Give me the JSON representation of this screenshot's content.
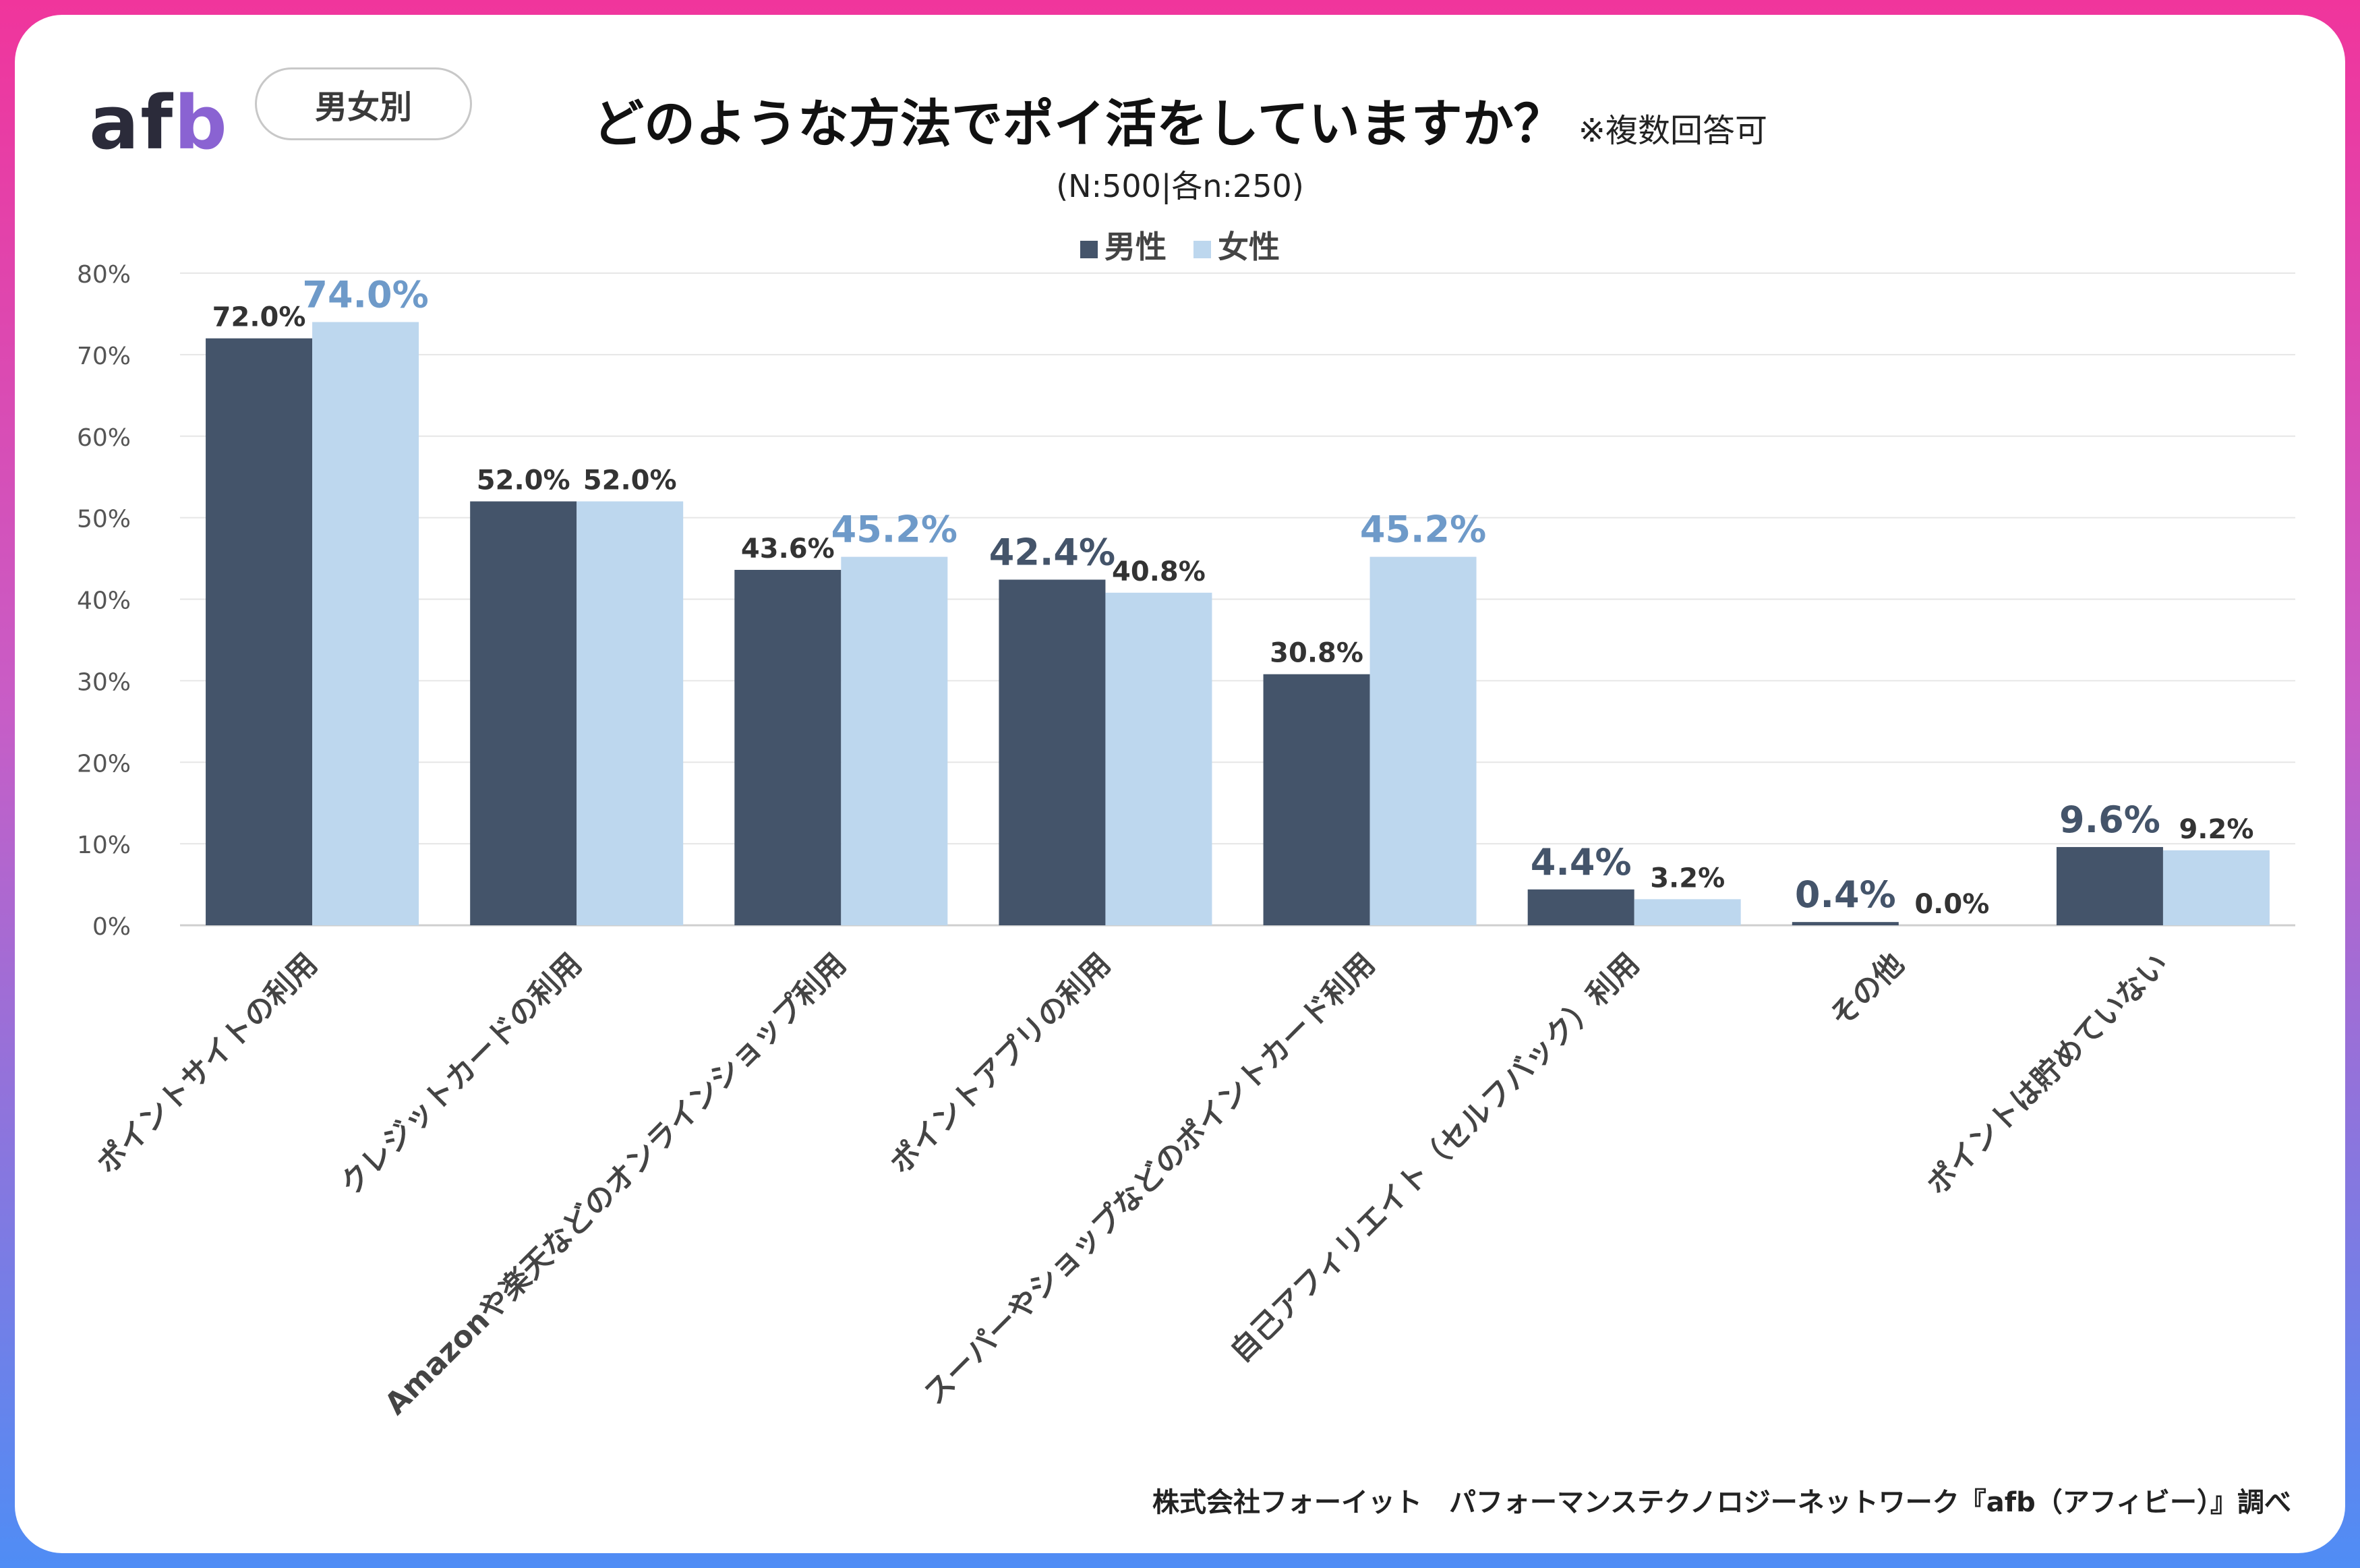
{
  "header": {
    "logo_text_a": "af",
    "logo_text_b": "b",
    "group_pill": "男女別",
    "title": "どのような方法でポイ活をしていますか？",
    "title_note": "※複数回答可",
    "subtitle": "(N:500|各n:250)"
  },
  "footer": {
    "source": "株式会社フォーイット　パフォーマンステクノロジーネットワーク『afb（アフィビー）』調べ"
  },
  "colors": {
    "male": "#44546a",
    "female": "#bdd7ee",
    "highlight": "#6e9ac9",
    "grid": "#e6e6e6"
  },
  "chart_data": {
    "type": "bar",
    "title": "どのような方法でポイ活をしていますか？",
    "categories": [
      "ポイントサイトの利用",
      "クレジットカードの利用",
      "Amazonや楽天などのオンラインショップ利用",
      "ポイントアプリの利用",
      "スーパーやショップなどのポイントカード利用",
      "自己アフィリエイト（セルフバック）利用",
      "その他",
      "ポイントは貯めていない"
    ],
    "series": [
      {
        "name": "男性",
        "values": [
          72.0,
          52.0,
          43.6,
          42.4,
          30.8,
          4.4,
          0.4,
          9.6
        ]
      },
      {
        "name": "女性",
        "values": [
          74.0,
          52.0,
          45.2,
          40.8,
          45.2,
          3.2,
          0.0,
          9.2
        ]
      }
    ],
    "data_labels": [
      [
        "72.0%",
        "52.0%",
        "43.6%",
        "42.4%",
        "30.8%",
        "4.4%",
        "0.4%",
        "9.6%"
      ],
      [
        "74.0%",
        "52.0%",
        "45.2%",
        "40.8%",
        "45.2%",
        "3.2%",
        "0.0%",
        "9.2%"
      ]
    ],
    "highlighted": [
      [
        false,
        false,
        false,
        true,
        false,
        true,
        true,
        true
      ],
      [
        true,
        false,
        true,
        false,
        true,
        false,
        false,
        false
      ]
    ],
    "y_ticks": [
      "0%",
      "10%",
      "20%",
      "30%",
      "40%",
      "50%",
      "60%",
      "70%",
      "80%"
    ],
    "ylim": [
      0,
      80
    ],
    "grid": true,
    "legend": "top-center",
    "xlabel": "",
    "ylabel": ""
  }
}
